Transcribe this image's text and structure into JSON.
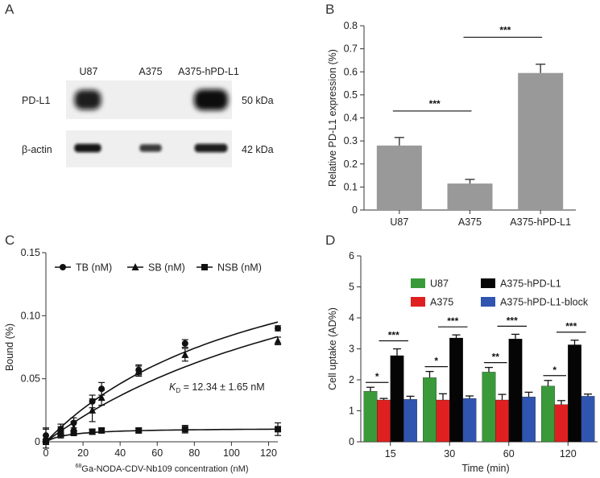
{
  "panels": {
    "A": {
      "letter": "A",
      "lanes": [
        "U87",
        "A375",
        "A375-hPD-L1"
      ],
      "rows": [
        {
          "protein": "PD-L1",
          "size": "50 kDa",
          "intensity": [
            0.85,
            0.0,
            1.0
          ]
        },
        {
          "protein": "β-actin",
          "size": "42 kDa",
          "intensity": [
            0.9,
            0.55,
            0.85
          ]
        }
      ]
    },
    "B": {
      "letter": "B"
    },
    "C": {
      "letter": "C"
    },
    "D": {
      "letter": "D"
    }
  },
  "colors": {
    "bar_gray": "#999999",
    "U87": "#3a9a3a",
    "A375": "#e02020",
    "A375-hPD-L1": "#050505",
    "A375-hPD-L1-block": "#3055b0"
  },
  "chart_data": [
    {
      "id": "B",
      "type": "bar",
      "categories": [
        "U87",
        "A375",
        "A375-hPD-L1"
      ],
      "values": [
        0.28,
        0.115,
        0.595
      ],
      "errors": [
        0.035,
        0.018,
        0.038
      ],
      "ylabel": "Relative PD-L1 expression (%)",
      "ylim": [
        0,
        0.8
      ],
      "yticks": [
        "0",
        "0.1",
        "0.2",
        "0.3",
        "0.4",
        "0.5",
        "0.6",
        "0.7",
        "0.8"
      ],
      "significance": [
        {
          "from": 0,
          "to": 1,
          "label": "***",
          "y": 0.43
        },
        {
          "from": 1,
          "to": 2,
          "label": "***",
          "y": 0.75
        }
      ]
    },
    {
      "id": "C",
      "type": "scatter",
      "xlabel_sup": "68",
      "xlabel": "Ga-NODA-CDV-Nb109  concentration (nM)",
      "ylabel": "Bound (%)",
      "xlim": [
        0,
        125
      ],
      "ylim": [
        0,
        0.15
      ],
      "xticks": [
        "0",
        "20",
        "40",
        "60",
        "80",
        "100",
        "120"
      ],
      "yticks": [
        "0",
        "0.05",
        "0.10",
        "0.15"
      ],
      "annotation_k": "K",
      "annotation_sub": "D",
      "annotation_rest": " = 12.34 ± 1.65 nM",
      "series": [
        {
          "name": "TB (nM)",
          "marker": "circle",
          "x": [
            0,
            8,
            15,
            25,
            30,
            50,
            75,
            125
          ],
          "y": [
            0.005,
            0.01,
            0.015,
            0.032,
            0.042,
            0.057,
            0.078,
            0.09
          ],
          "err": [
            0.006,
            0.004,
            0.004,
            0.005,
            0.005,
            0.004,
            0.003,
            0.002
          ],
          "fit": {
            "bmax": 0.19,
            "k": 125
          }
        },
        {
          "name": "SB (nM)",
          "marker": "triangle",
          "x": [
            0,
            8,
            15,
            25,
            30,
            50,
            75,
            125
          ],
          "y": [
            0.004,
            0.008,
            0.011,
            0.025,
            0.035,
            0.056,
            0.069,
            0.08
          ],
          "err": [
            0.006,
            0.004,
            0.005,
            0.009,
            0.006,
            0.004,
            0.005,
            0.003
          ],
          "fit": {
            "bmax": 0.21,
            "k": 190
          }
        },
        {
          "name": "NSB (nM)",
          "marker": "square",
          "x": [
            0,
            8,
            15,
            25,
            30,
            50,
            75,
            125
          ],
          "y": [
            0.0,
            0.006,
            0.007,
            0.008,
            0.009,
            0.009,
            0.01,
            0.01
          ],
          "err": [
            0.005,
            0.003,
            0.002,
            0.002,
            0.002,
            0.002,
            0.003,
            0.005
          ],
          "fit": {
            "bmax": 0.011,
            "k": 12.34
          }
        }
      ]
    },
    {
      "id": "D",
      "type": "bar",
      "categories": [
        "15",
        "30",
        "60",
        "120"
      ],
      "xlabel": "Time (min)",
      "ylabel": "Cell uptake (AD%)",
      "ylim": [
        0,
        6
      ],
      "yticks": [
        "0",
        "1",
        "2",
        "3",
        "4",
        "5",
        "6"
      ],
      "series": [
        {
          "name": "U87",
          "values": [
            1.63,
            2.07,
            2.25,
            1.8
          ],
          "errors": [
            0.13,
            0.2,
            0.15,
            0.18
          ]
        },
        {
          "name": "A375",
          "values": [
            1.35,
            1.35,
            1.35,
            1.2
          ],
          "errors": [
            0.05,
            0.2,
            0.18,
            0.13
          ]
        },
        {
          "name": "A375-hPD-L1",
          "values": [
            2.78,
            3.35,
            3.32,
            3.13
          ],
          "errors": [
            0.22,
            0.1,
            0.15,
            0.15
          ]
        },
        {
          "name": "A375-hPD-L1-block",
          "values": [
            1.37,
            1.4,
            1.45,
            1.47
          ],
          "errors": [
            0.1,
            0.08,
            0.15,
            0.07
          ]
        }
      ],
      "significance": [
        {
          "group": 0,
          "from": 0,
          "to": 1,
          "label": "*"
        },
        {
          "group": 0,
          "from": 1,
          "to": 2,
          "label": "***"
        },
        {
          "group": 1,
          "from": 0,
          "to": 1,
          "label": "*"
        },
        {
          "group": 1,
          "from": 1,
          "to": 2,
          "label": "***"
        },
        {
          "group": 2,
          "from": 0,
          "to": 1,
          "label": "**"
        },
        {
          "group": 2,
          "from": 1,
          "to": 2,
          "label": "***"
        },
        {
          "group": 3,
          "from": 0,
          "to": 1,
          "label": "*"
        },
        {
          "group": 3,
          "from": 1,
          "to": 2,
          "label": "***"
        }
      ]
    }
  ]
}
